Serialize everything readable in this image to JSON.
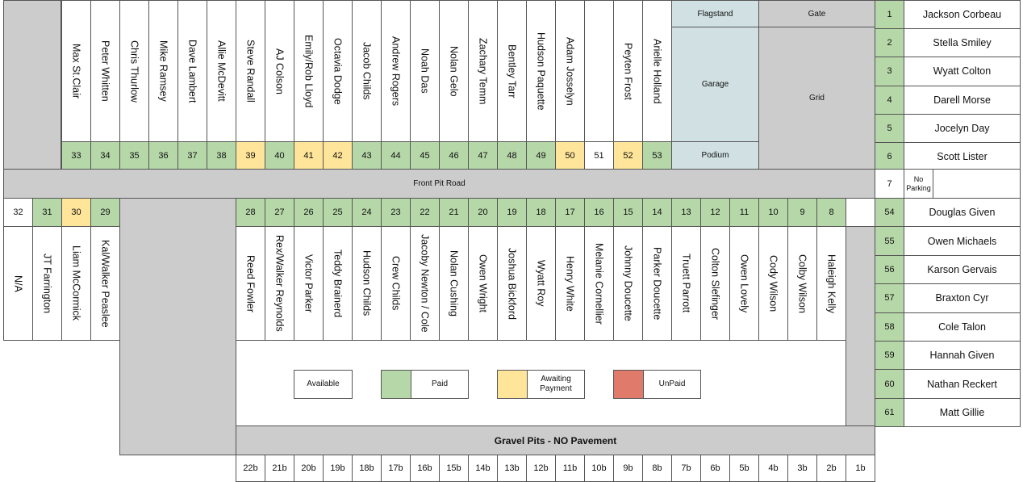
{
  "colors": {
    "paid": "#b6d7a8",
    "awaiting": "#ffe599",
    "unpaid": "#e07a6a",
    "available": "#ffffff",
    "structure": "#d0e0e3",
    "road": "#cccccc"
  },
  "labels": {
    "flagstand": "Flagstand",
    "gate": "Gate",
    "garage": "Garage",
    "grid": "Grid",
    "podium": "Podium",
    "front_pit_road": "Front Pit Road",
    "gravel_pits": "Gravel Pits - NO Pavement",
    "no_parking": "No Parking",
    "spot7": "7"
  },
  "legend": [
    {
      "label": "Available",
      "status": "available"
    },
    {
      "label": "Paid",
      "status": "paid"
    },
    {
      "label": "Awaiting Payment",
      "status": "awaiting"
    },
    {
      "label": "UnPaid",
      "status": "unpaid"
    }
  ],
  "top_spots": [
    {
      "num": "33",
      "name": "Max St.Clair",
      "status": "paid"
    },
    {
      "num": "34",
      "name": "Peter Whitten",
      "status": "paid"
    },
    {
      "num": "35",
      "name": "Chris Thurlow",
      "status": "paid"
    },
    {
      "num": "36",
      "name": "Mike Ramsey",
      "status": "paid"
    },
    {
      "num": "37",
      "name": "Dave Lambert",
      "status": "paid"
    },
    {
      "num": "38",
      "name": "Allie McDevitt",
      "status": "paid"
    },
    {
      "num": "39",
      "name": "Steve Randall",
      "status": "awaiting"
    },
    {
      "num": "40",
      "name": "AJ Colson",
      "status": "paid"
    },
    {
      "num": "41",
      "name": "Emily/Rob Lloyd",
      "status": "awaiting"
    },
    {
      "num": "42",
      "name": "Octavia Dodge",
      "status": "awaiting"
    },
    {
      "num": "43",
      "name": "Jacob Childs",
      "status": "paid"
    },
    {
      "num": "44",
      "name": "Andrew Rogers",
      "status": "paid"
    },
    {
      "num": "45",
      "name": "Noah Das",
      "status": "paid"
    },
    {
      "num": "46",
      "name": "Nolan Gelo",
      "status": "paid"
    },
    {
      "num": "47",
      "name": "Zachary Temm",
      "status": "paid"
    },
    {
      "num": "48",
      "name": "Bentley Tarr",
      "status": "paid"
    },
    {
      "num": "49",
      "name": "Hudson Paquette",
      "status": "paid"
    },
    {
      "num": "50",
      "name": "Adam Josselyn",
      "status": "awaiting"
    },
    {
      "num": "51",
      "name": "",
      "status": "available"
    },
    {
      "num": "52",
      "name": "Peyten Frost",
      "status": "awaiting"
    },
    {
      "num": "53",
      "name": "Arielle Holland",
      "status": "paid"
    }
  ],
  "bottom_left_spots": [
    {
      "num": "32",
      "name": "N/A",
      "status": "available"
    },
    {
      "num": "31",
      "name": "JT Farrington",
      "status": "paid"
    },
    {
      "num": "30",
      "name": "Liam McCormick",
      "status": "awaiting"
    },
    {
      "num": "29",
      "name": "Kal/Walker Peaslee",
      "status": "paid"
    }
  ],
  "bottom_spots": [
    {
      "num": "28",
      "name": "Reed Fowler",
      "status": "paid"
    },
    {
      "num": "27",
      "name": "Rex/Walker Reynolds",
      "status": "paid"
    },
    {
      "num": "26",
      "name": "Victor Parker",
      "status": "paid"
    },
    {
      "num": "25",
      "name": "Teddy Brainerd",
      "status": "paid"
    },
    {
      "num": "24",
      "name": "Hudson Childs",
      "status": "paid"
    },
    {
      "num": "23",
      "name": "Crew Childs",
      "status": "paid"
    },
    {
      "num": "22",
      "name": "Jacoby Newton / Cole",
      "status": "paid"
    },
    {
      "num": "21",
      "name": "Nolan Cushing",
      "status": "paid"
    },
    {
      "num": "20",
      "name": "Owen Wright",
      "status": "paid"
    },
    {
      "num": "19",
      "name": "Joshua Bickford",
      "status": "paid"
    },
    {
      "num": "18",
      "name": "Wyatt Roy",
      "status": "paid"
    },
    {
      "num": "17",
      "name": "Henry White",
      "status": "paid"
    },
    {
      "num": "16",
      "name": "Melanie Cornellier",
      "status": "paid"
    },
    {
      "num": "15",
      "name": "Johnny Doucette",
      "status": "paid"
    },
    {
      "num": "14",
      "name": "Parker Doucette",
      "status": "paid"
    },
    {
      "num": "13",
      "name": "Truett Parrott",
      "status": "paid"
    },
    {
      "num": "12",
      "name": "Colton Slefinger",
      "status": "paid"
    },
    {
      "num": "11",
      "name": "Owen Lovely",
      "status": "paid"
    },
    {
      "num": "10",
      "name": "Cody Wilson",
      "status": "paid"
    },
    {
      "num": "9",
      "name": "Colby Wilson",
      "status": "paid"
    },
    {
      "num": "8",
      "name": "Haleigh Kelly",
      "status": "paid"
    }
  ],
  "gravel_spots": [
    "22b",
    "21b",
    "20b",
    "19b",
    "18b",
    "17b",
    "16b",
    "15b",
    "14b",
    "13b",
    "12b",
    "11b",
    "10b",
    "9b",
    "8b",
    "7b",
    "6b",
    "5b",
    "4b",
    "3b",
    "2b",
    "1b"
  ],
  "right_top": [
    {
      "num": "1",
      "name": "Jackson Corbeau",
      "status": "paid"
    },
    {
      "num": "2",
      "name": "Stella Smiley",
      "status": "paid"
    },
    {
      "num": "3",
      "name": "Wyatt Colton",
      "status": "paid"
    },
    {
      "num": "4",
      "name": "Darell Morse",
      "status": "paid"
    },
    {
      "num": "5",
      "name": "Jocelyn Day",
      "status": "paid"
    },
    {
      "num": "6",
      "name": "Scott Lister",
      "status": "paid"
    }
  ],
  "right_bottom": [
    {
      "num": "54",
      "name": "Douglas Given",
      "status": "paid"
    },
    {
      "num": "55",
      "name": "Owen Michaels",
      "status": "paid"
    },
    {
      "num": "56",
      "name": "Karson Gervais",
      "status": "paid"
    },
    {
      "num": "57",
      "name": "Braxton Cyr",
      "status": "paid"
    },
    {
      "num": "58",
      "name": "Cole Talon",
      "status": "paid"
    },
    {
      "num": "59",
      "name": "Hannah Given",
      "status": "paid"
    },
    {
      "num": "60",
      "name": "Nathan Reckert",
      "status": "paid"
    },
    {
      "num": "61",
      "name": "Matt Gillie",
      "status": "paid"
    }
  ]
}
